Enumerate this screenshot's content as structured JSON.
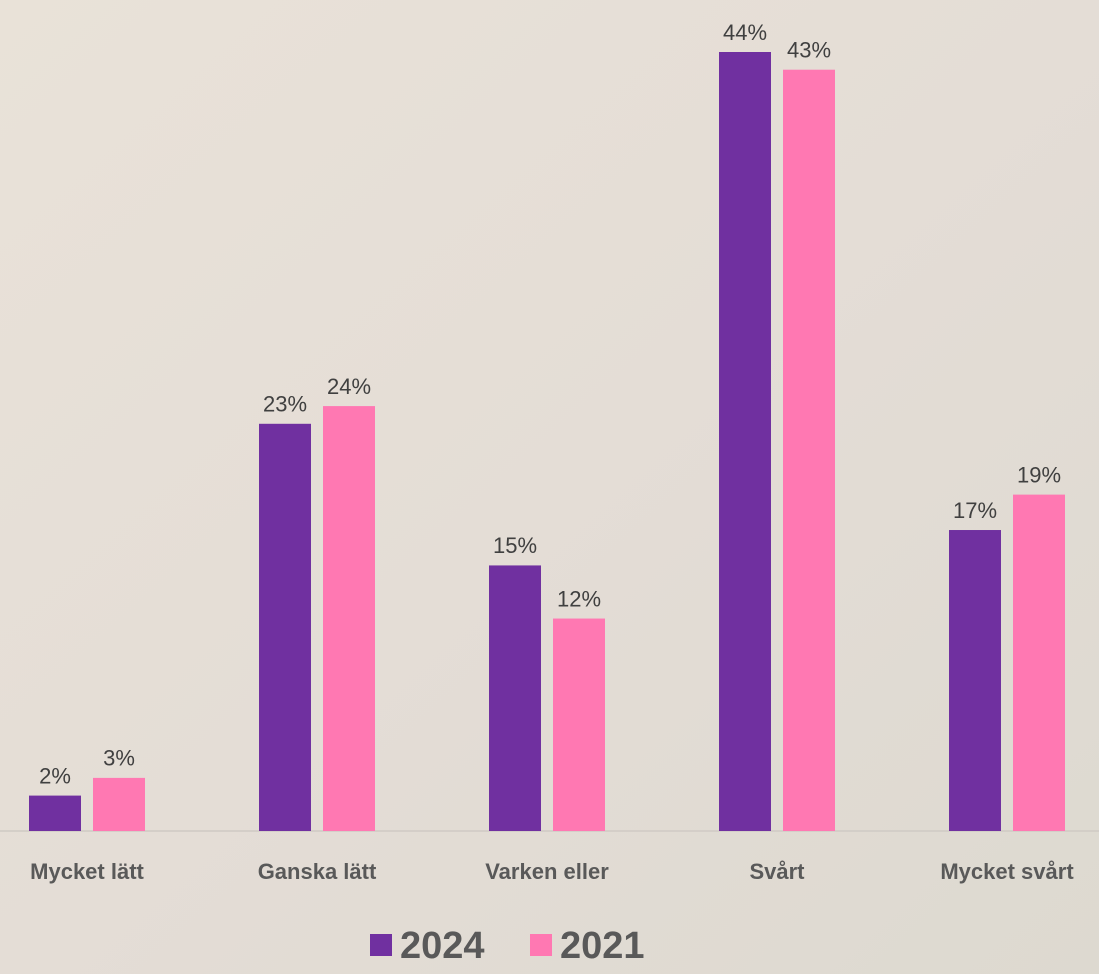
{
  "chart_data": {
    "type": "bar",
    "categories": [
      "Mycket lätt",
      "Ganska lätt",
      "Varken eller",
      "Svårt",
      "Mycket svårt"
    ],
    "series": [
      {
        "name": "2024",
        "color": "#7030a0",
        "values": [
          2,
          23,
          15,
          44,
          17
        ],
        "value_labels": [
          "2%",
          "23%",
          "15%",
          "44%",
          "17%"
        ]
      },
      {
        "name": "2021",
        "color": "#ff78b2",
        "values": [
          3,
          24,
          12,
          43,
          19
        ],
        "value_labels": [
          "3%",
          "24%",
          "12%",
          "43%",
          "19%"
        ]
      }
    ],
    "legend": "bottom"
  }
}
